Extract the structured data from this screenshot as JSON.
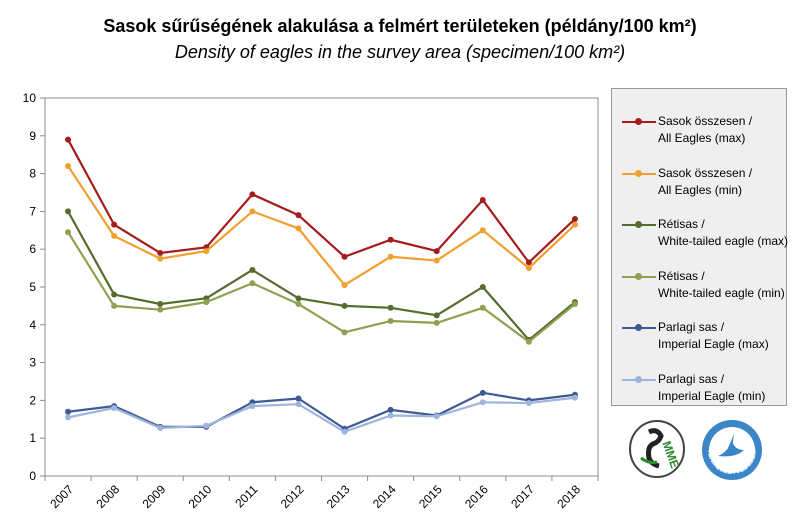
{
  "title_hu": "Sasok sűrűségének alakulása a felmért területeken (példány/100 km²)",
  "title_en": "Density of eagles in the survey area (specimen/100 km²)",
  "chart_data": {
    "type": "line",
    "categories": [
      "2007",
      "2008",
      "2009",
      "2010",
      "2011",
      "2012",
      "2013",
      "2014",
      "2015",
      "2016",
      "2017",
      "2018"
    ],
    "ylim": [
      0,
      10
    ],
    "yticks": [
      "0",
      "1",
      "2",
      "3",
      "4",
      "5",
      "6",
      "7",
      "8",
      "9",
      "10"
    ],
    "grid": false,
    "legend_position": "right",
    "series": [
      {
        "name_line1": "Sasok összesen /",
        "name_line2": "All Eagles (max)",
        "color": "#a51c1c",
        "values": [
          8.9,
          6.65,
          5.9,
          6.05,
          7.45,
          6.9,
          5.8,
          6.25,
          5.95,
          7.3,
          5.65,
          6.8
        ]
      },
      {
        "name_line1": "Sasok összesen /",
        "name_line2": "All Eagles (min)",
        "color": "#f0a030",
        "values": [
          8.2,
          6.35,
          5.75,
          5.95,
          7.0,
          6.55,
          5.05,
          5.8,
          5.7,
          6.5,
          5.5,
          6.65
        ]
      },
      {
        "name_line1": "Rétisas /",
        "name_line2": "White-tailed eagle (max)",
        "color": "#556b2f",
        "values": [
          7.0,
          4.8,
          4.55,
          4.7,
          5.45,
          4.7,
          4.5,
          4.45,
          4.25,
          5.0,
          3.6,
          4.6
        ]
      },
      {
        "name_line1": "Rétisas /",
        "name_line2": "White-tailed eagle (min)",
        "color": "#8fa050",
        "values": [
          6.45,
          4.5,
          4.4,
          4.6,
          5.1,
          4.55,
          3.8,
          4.1,
          4.05,
          4.45,
          3.55,
          4.55
        ]
      },
      {
        "name_line1": "Parlagi sas /",
        "name_line2": "Imperial Eagle (max)",
        "color": "#3d5a92",
        "values": [
          1.7,
          1.85,
          1.3,
          1.3,
          1.95,
          2.05,
          1.25,
          1.75,
          1.6,
          2.2,
          2.0,
          2.15
        ]
      },
      {
        "name_line1": "Parlagi sas /",
        "name_line2": "Imperial Eagle (min)",
        "color": "#9fb4dc",
        "values": [
          1.55,
          1.8,
          1.27,
          1.33,
          1.85,
          1.9,
          1.17,
          1.6,
          1.58,
          1.95,
          1.93,
          2.07
        ]
      }
    ]
  },
  "logos": [
    {
      "name": "mme-logo",
      "text": "MME",
      "color": "#2e8b2e"
    },
    {
      "name": "termeszetvedelem-logo",
      "text": "TERMÉSZETVÉDELEM",
      "color": "#3a86c8"
    }
  ]
}
